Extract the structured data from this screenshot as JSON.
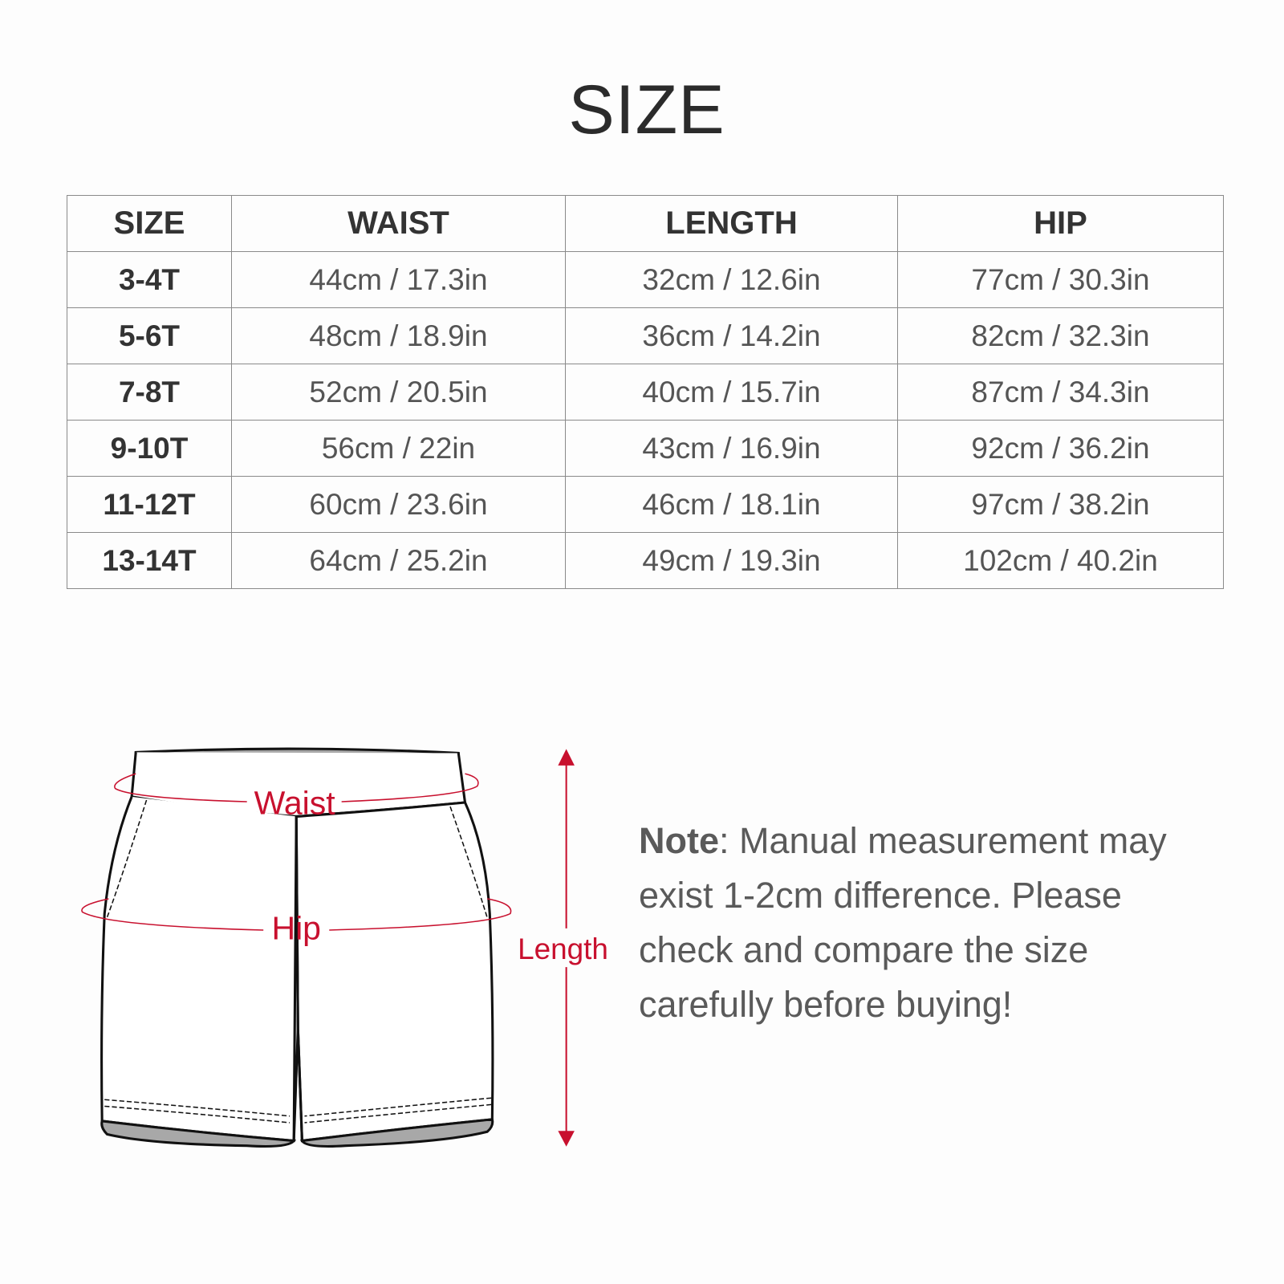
{
  "title": "SIZE",
  "table": {
    "headers": [
      "SIZE",
      "WAIST",
      "LENGTH",
      "HIP"
    ],
    "rows": [
      [
        "3-4T",
        "44cm / 17.3in",
        "32cm / 12.6in",
        "77cm / 30.3in"
      ],
      [
        "5-6T",
        "48cm / 18.9in",
        "36cm / 14.2in",
        "82cm / 32.3in"
      ],
      [
        "7-8T",
        "52cm / 20.5in",
        "40cm / 15.7in",
        "87cm / 34.3in"
      ],
      [
        "9-10T",
        "56cm / 22in",
        "43cm / 16.9in",
        "92cm / 36.2in"
      ],
      [
        "11-12T",
        "60cm / 23.6in",
        "46cm / 18.1in",
        "97cm / 38.2in"
      ],
      [
        "13-14T",
        "64cm / 25.2in",
        "49cm / 19.3in",
        "102cm / 40.2in"
      ]
    ]
  },
  "diagram": {
    "waist_label": "Waist",
    "hip_label": "Hip",
    "length_label": "Length",
    "accent_color": "#c8102e"
  },
  "note": {
    "label": "Note",
    "text": ": Manual measurement may exist 1-2cm difference. Please check and compare the size carefully before buying!"
  }
}
